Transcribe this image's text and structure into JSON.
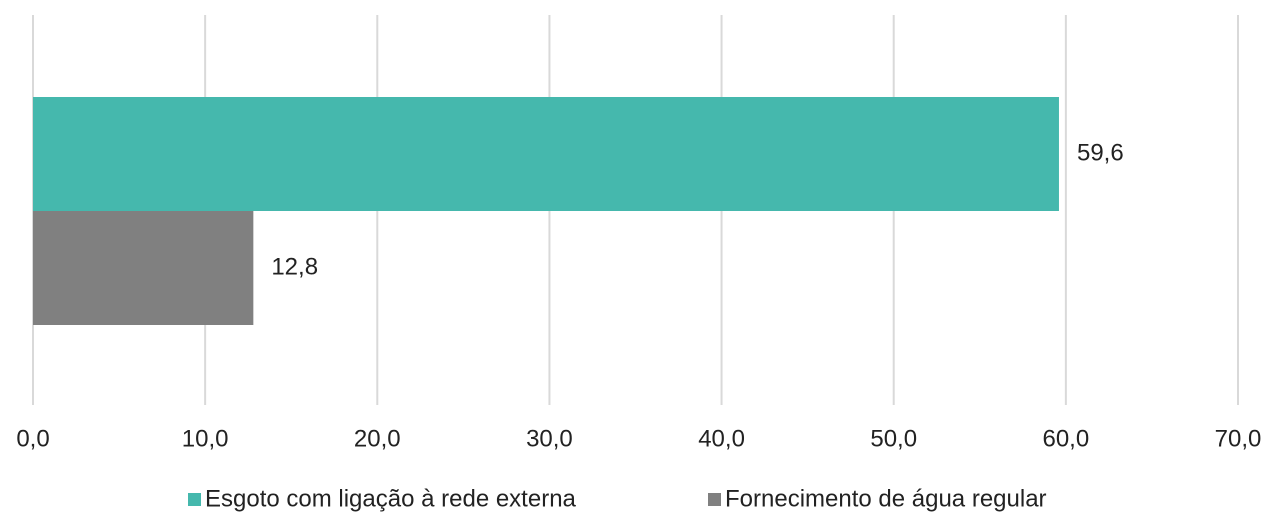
{
  "chart_data": {
    "type": "bar",
    "orientation": "horizontal",
    "categories": [
      null
    ],
    "series": [
      {
        "name": "Esgoto com ligação à rede externa",
        "color": "#45b8ad",
        "values": [
          59.6
        ],
        "value_labels": [
          "59,6"
        ]
      },
      {
        "name": "Fornecimento de água regular",
        "color": "#808080",
        "values": [
          12.8
        ],
        "value_labels": [
          "12,8"
        ]
      }
    ],
    "xlim": [
      0,
      70
    ],
    "xticks": [
      {
        "value": 0,
        "label": "0,0"
      },
      {
        "value": 10,
        "label": "10,0"
      },
      {
        "value": 20,
        "label": "20,0"
      },
      {
        "value": 30,
        "label": "30,0"
      },
      {
        "value": 40,
        "label": "40,0"
      },
      {
        "value": 50,
        "label": "50,0"
      },
      {
        "value": 60,
        "label": "60,0"
      },
      {
        "value": 70,
        "label": "70,0"
      }
    ],
    "grid": true,
    "legend": "bottom"
  }
}
